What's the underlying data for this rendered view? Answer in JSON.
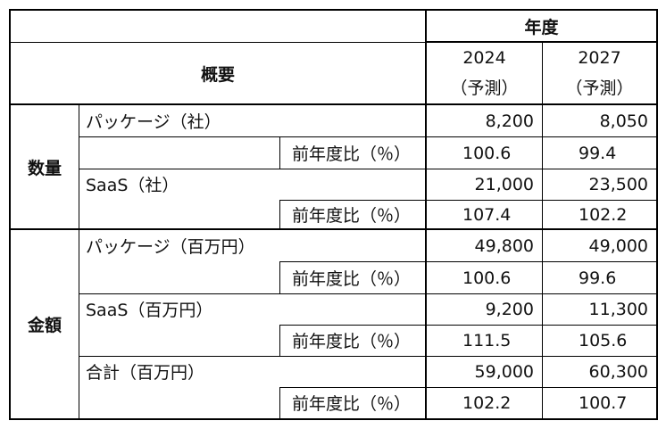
{
  "header": {
    "year_label": "年度",
    "overview_label": "概要",
    "year_2024": "2024",
    "year_2024_note": "（予測）",
    "year_2027": "2027",
    "year_2027_note": "（予測）"
  },
  "groups": {
    "quantity": "数量",
    "amount": "金額"
  },
  "ratio_label": "前年度比（％）",
  "rows": [
    {
      "label": "パッケージ（社）",
      "v2024": "8,200",
      "v2027": "8,050"
    },
    {
      "label": "",
      "v2024": "100.6",
      "v2027": "99.4"
    },
    {
      "label": "SaaS（社）",
      "v2024": "21,000",
      "v2027": "23,500"
    },
    {
      "label": "",
      "v2024": "107.4",
      "v2027": "102.2"
    },
    {
      "label": "パッケージ（百万円）",
      "v2024": "49,800",
      "v2027": "49,000"
    },
    {
      "label": "",
      "v2024": "100.6",
      "v2027": "99.6"
    },
    {
      "label": "SaaS（百万円）",
      "v2024": "9,200",
      "v2027": "11,300"
    },
    {
      "label": "",
      "v2024": "111.5",
      "v2027": "105.6"
    },
    {
      "label": "合計（百万円）",
      "v2024": "59,000",
      "v2027": "60,300"
    },
    {
      "label": "",
      "v2024": "102.2",
      "v2027": "100.7"
    }
  ]
}
